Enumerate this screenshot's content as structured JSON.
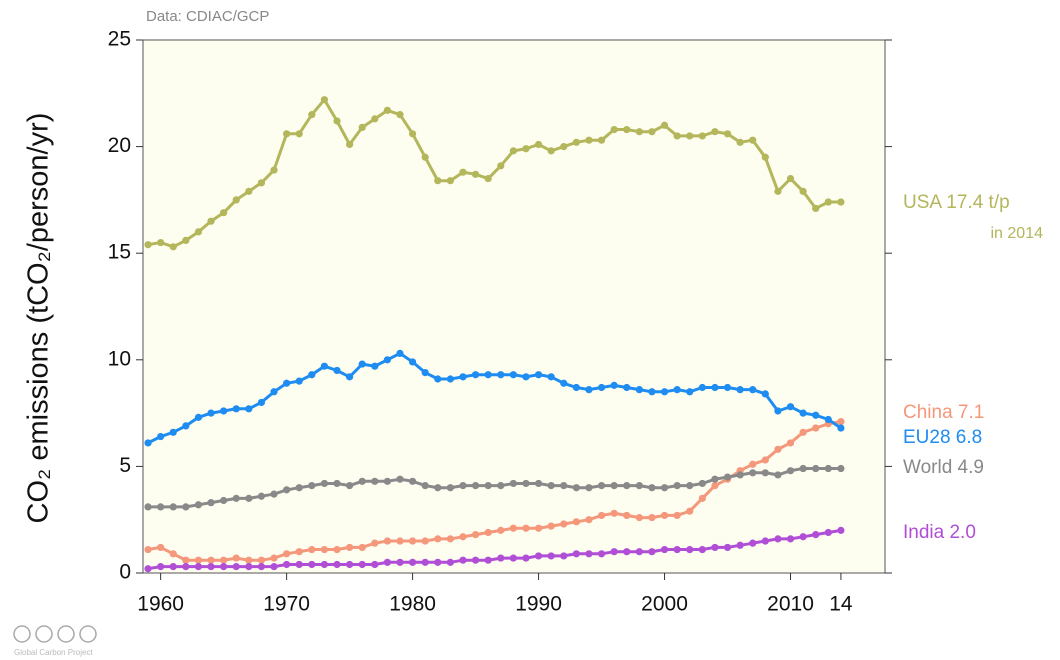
{
  "chart_data": {
    "type": "line",
    "source": "Data: CDIAC/GCP",
    "y_label": "CO₂ emissions (tCO₂/person/yr)",
    "footer": "Global Carbon Project",
    "annotation": "in 2014",
    "x": [
      1959,
      1960,
      1961,
      1962,
      1963,
      1964,
      1965,
      1966,
      1967,
      1968,
      1969,
      1970,
      1971,
      1972,
      1973,
      1974,
      1975,
      1976,
      1977,
      1978,
      1979,
      1980,
      1981,
      1982,
      1983,
      1984,
      1985,
      1986,
      1987,
      1988,
      1989,
      1990,
      1991,
      1992,
      1993,
      1994,
      1995,
      1996,
      1997,
      1998,
      1999,
      2000,
      2001,
      2002,
      2003,
      2004,
      2005,
      2006,
      2007,
      2008,
      2009,
      2010,
      2011,
      2012,
      2013,
      2014
    ],
    "xlim": [
      1958.6,
      2017.5
    ],
    "xticks": [
      1960,
      1970,
      1980,
      1990,
      2000,
      2010,
      {
        "value": 2014,
        "label": "14"
      }
    ],
    "ylim": [
      0,
      25
    ],
    "yticks": [
      0,
      5,
      10,
      15,
      20,
      25
    ],
    "grid": false,
    "background": "#fdfdf0",
    "series": [
      {
        "name": "USA",
        "label": "USA 17.4 t/p",
        "color": "#b3b65a",
        "values": [
          15.4,
          15.5,
          15.3,
          15.6,
          16.0,
          16.5,
          16.9,
          17.5,
          17.9,
          18.3,
          18.9,
          20.6,
          20.6,
          21.5,
          22.2,
          21.2,
          20.1,
          20.9,
          21.3,
          21.7,
          21.5,
          20.6,
          19.5,
          18.4,
          18.4,
          18.8,
          18.7,
          18.5,
          19.1,
          19.8,
          19.9,
          20.1,
          19.8,
          20.0,
          20.2,
          20.3,
          20.3,
          20.8,
          20.8,
          20.7,
          20.7,
          21.0,
          20.5,
          20.5,
          20.5,
          20.7,
          20.6,
          20.2,
          20.3,
          19.5,
          17.9,
          18.5,
          17.9,
          17.1,
          17.4,
          17.4
        ]
      },
      {
        "name": "China",
        "label": "China 7.1",
        "color": "#f4977a",
        "values": [
          1.1,
          1.2,
          0.9,
          0.6,
          0.6,
          0.6,
          0.6,
          0.7,
          0.6,
          0.6,
          0.7,
          0.9,
          1.0,
          1.1,
          1.1,
          1.1,
          1.2,
          1.2,
          1.4,
          1.5,
          1.5,
          1.5,
          1.5,
          1.6,
          1.6,
          1.7,
          1.8,
          1.9,
          2.0,
          2.1,
          2.1,
          2.1,
          2.2,
          2.3,
          2.4,
          2.5,
          2.7,
          2.8,
          2.7,
          2.6,
          2.6,
          2.7,
          2.7,
          2.9,
          3.5,
          4.1,
          4.4,
          4.8,
          5.1,
          5.3,
          5.8,
          6.1,
          6.6,
          6.8,
          7.0,
          7.1
        ]
      },
      {
        "name": "EU28",
        "label": "EU28 6.8",
        "color": "#1e8cf0",
        "values": [
          6.1,
          6.4,
          6.6,
          6.9,
          7.3,
          7.5,
          7.6,
          7.7,
          7.7,
          8.0,
          8.5,
          8.9,
          9.0,
          9.3,
          9.7,
          9.5,
          9.2,
          9.8,
          9.7,
          10.0,
          10.3,
          9.9,
          9.4,
          9.1,
          9.1,
          9.2,
          9.3,
          9.3,
          9.3,
          9.3,
          9.2,
          9.3,
          9.2,
          8.9,
          8.7,
          8.6,
          8.7,
          8.8,
          8.7,
          8.6,
          8.5,
          8.5,
          8.6,
          8.5,
          8.7,
          8.7,
          8.7,
          8.6,
          8.6,
          8.4,
          7.6,
          7.8,
          7.5,
          7.4,
          7.2,
          6.8
        ]
      },
      {
        "name": "World",
        "label": "World 4.9",
        "color": "#898989",
        "values": [
          3.1,
          3.1,
          3.1,
          3.1,
          3.2,
          3.3,
          3.4,
          3.5,
          3.5,
          3.6,
          3.7,
          3.9,
          4.0,
          4.1,
          4.2,
          4.2,
          4.1,
          4.3,
          4.3,
          4.3,
          4.4,
          4.3,
          4.1,
          4.0,
          4.0,
          4.1,
          4.1,
          4.1,
          4.1,
          4.2,
          4.2,
          4.2,
          4.1,
          4.1,
          4.0,
          4.0,
          4.1,
          4.1,
          4.1,
          4.1,
          4.0,
          4.0,
          4.1,
          4.1,
          4.2,
          4.4,
          4.5,
          4.6,
          4.7,
          4.7,
          4.6,
          4.8,
          4.9,
          4.9,
          4.9,
          4.9
        ]
      },
      {
        "name": "India",
        "label": "India 2.0",
        "color": "#b04ed6",
        "values": [
          0.2,
          0.3,
          0.3,
          0.3,
          0.3,
          0.3,
          0.3,
          0.3,
          0.3,
          0.3,
          0.3,
          0.4,
          0.4,
          0.4,
          0.4,
          0.4,
          0.4,
          0.4,
          0.4,
          0.5,
          0.5,
          0.5,
          0.5,
          0.5,
          0.5,
          0.6,
          0.6,
          0.6,
          0.7,
          0.7,
          0.7,
          0.8,
          0.8,
          0.8,
          0.9,
          0.9,
          0.9,
          1.0,
          1.0,
          1.0,
          1.0,
          1.1,
          1.1,
          1.1,
          1.1,
          1.2,
          1.2,
          1.3,
          1.4,
          1.5,
          1.6,
          1.6,
          1.7,
          1.8,
          1.9,
          2.0
        ]
      }
    ]
  }
}
